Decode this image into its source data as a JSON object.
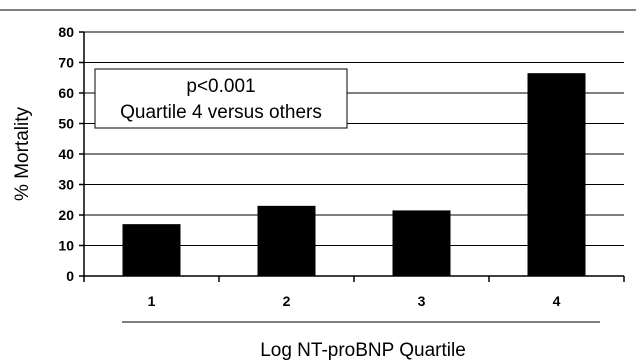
{
  "chart_data": {
    "type": "bar",
    "categories": [
      "1",
      "2",
      "3",
      "4"
    ],
    "values": [
      17,
      23,
      21.5,
      66.5
    ],
    "ylabel": "% Mortality",
    "xlabel": "Log NT-proBNP Quartile",
    "ylim": [
      0,
      80
    ],
    "yticks": [
      0,
      10,
      20,
      30,
      40,
      50,
      60,
      70,
      80
    ],
    "grid": true,
    "bar_color": "#000000",
    "annotation": {
      "line1": "p<0.001",
      "line2": "Quartile 4 versus others"
    }
  }
}
